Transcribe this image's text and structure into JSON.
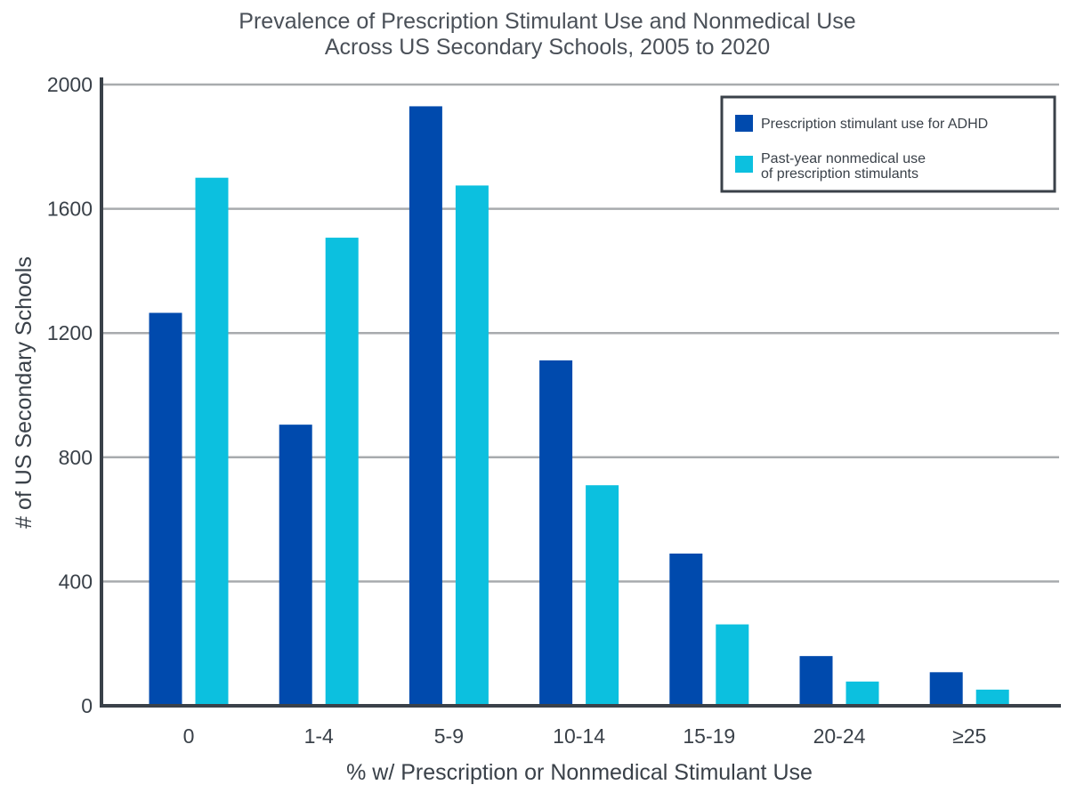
{
  "chart_data": {
    "type": "bar",
    "title": [
      "Prevalence of Prescription Stimulant Use and Nonmedical Use",
      "Across US Secondary Schools, 2005 to 2020"
    ],
    "xlabel": "% w/ Prescription or Nonmedical Stimulant Use",
    "ylabel": "# of US Secondary Schools",
    "categories": [
      "0",
      "1-4",
      "5-9",
      "10-14",
      "15-19",
      "20-24",
      "≥25"
    ],
    "ylim": [
      0,
      2000
    ],
    "yticks": [
      0,
      400,
      800,
      1200,
      1600,
      2000
    ],
    "grid": true,
    "legend_position": "top-right",
    "series": [
      {
        "name": "Prescription stimulant use for ADHD",
        "legend_lines": [
          "Prescription stimulant use for ADHD"
        ],
        "color": "#004aad",
        "values": [
          1265,
          905,
          1930,
          1112,
          490,
          160,
          108
        ]
      },
      {
        "name": "Past-year nonmedical use of prescription stimulants",
        "legend_lines": [
          "Past-year nonmedical use",
          "of prescription stimulants"
        ],
        "color": "#0cc0df",
        "values": [
          1700,
          1507,
          1675,
          710,
          262,
          78,
          52
        ]
      }
    ]
  }
}
